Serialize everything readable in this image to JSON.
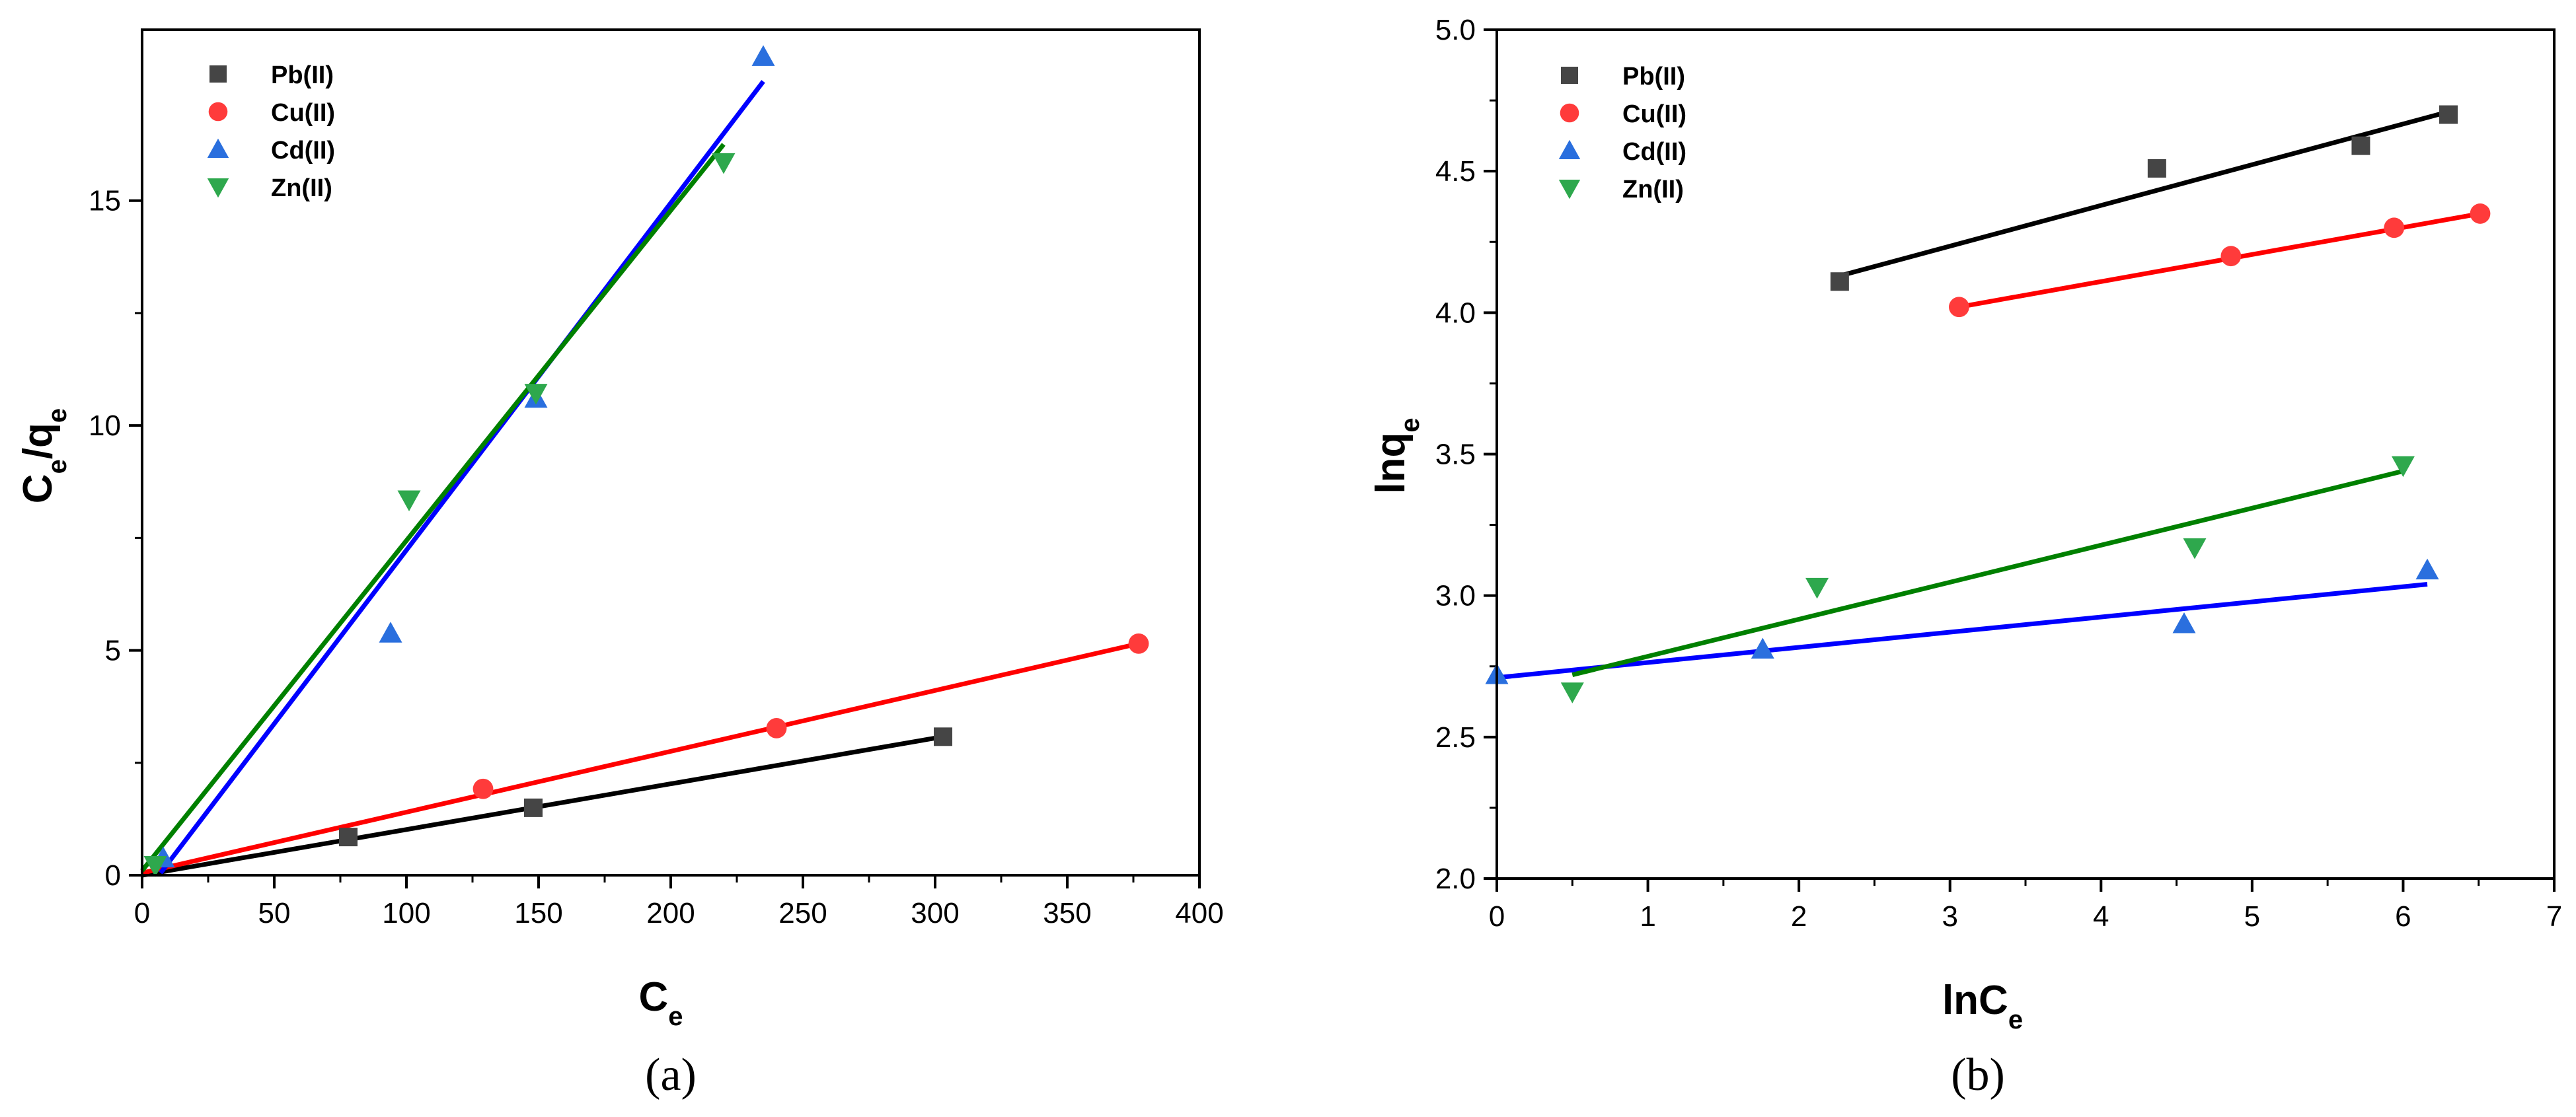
{
  "chart_data": [
    {
      "type": "scatter",
      "panel": "a",
      "caption": "(a)",
      "xlabel": {
        "main": "C",
        "sub": "e"
      },
      "ylabel": {
        "main1": "C",
        "sub1": "e",
        "slash": "/",
        "main2": "q",
        "sub2": "e"
      },
      "xlim": [
        0,
        400
      ],
      "ylim": [
        0,
        18.8
      ],
      "xticks": [
        0,
        50,
        100,
        150,
        200,
        250,
        300,
        350,
        400
      ],
      "yticks": [
        0,
        5,
        10,
        15
      ],
      "legend_position": "top-left",
      "series": [
        {
          "name": "Pb(II)",
          "marker": "square",
          "color": "#454545",
          "line_color": "#000000",
          "x": [
            78,
            148,
            303
          ],
          "y": [
            0.85,
            1.5,
            3.08
          ],
          "fit_x": [
            0,
            303
          ],
          "fit_y": [
            0.0,
            3.08
          ]
        },
        {
          "name": "Cu(II)",
          "marker": "circle",
          "color": "#ff3b3b",
          "line_color": "#ff0000",
          "x": [
            129,
            240,
            377
          ],
          "y": [
            1.92,
            3.27,
            5.15
          ],
          "fit_x": [
            0,
            377
          ],
          "fit_y": [
            0.05,
            5.15
          ]
        },
        {
          "name": "Cd(II)",
          "marker": "triangle-up",
          "color": "#2a6fde",
          "line_color": "#0000ff",
          "x": [
            8,
            94,
            149,
            235
          ],
          "y": [
            0.38,
            5.38,
            10.6,
            18.2
          ],
          "fit_x": [
            7,
            235
          ],
          "fit_y": [
            0.05,
            17.65
          ]
        },
        {
          "name": "Zn(II)",
          "marker": "triangle-down",
          "color": "#2ea84d",
          "line_color": "#008000",
          "x": [
            5,
            101,
            149,
            220
          ],
          "y": [
            0.22,
            8.35,
            10.72,
            15.85
          ],
          "fit_x": [
            0,
            220
          ],
          "fit_y": [
            0.1,
            16.25
          ]
        }
      ]
    },
    {
      "type": "scatter",
      "panel": "b",
      "caption": "(b)",
      "xlabel": {
        "main": "lnC",
        "sub": "e"
      },
      "ylabel": {
        "main1": "lnq",
        "sub1": "e",
        "slash": "",
        "main2": "",
        "sub2": ""
      },
      "xlim": [
        0,
        7
      ],
      "ylim": [
        2.0,
        5.0
      ],
      "xticks": [
        0,
        1,
        2,
        3,
        4,
        5,
        6,
        7
      ],
      "yticks": [
        2.0,
        2.5,
        3.0,
        3.5,
        4.0,
        4.5,
        5.0
      ],
      "ytick_labels": [
        "2.0",
        "2.5",
        "3.0",
        "3.5",
        "4.0",
        "4.5",
        "5.0"
      ],
      "legend_position": "top-left",
      "series": [
        {
          "name": "Pb(II)",
          "marker": "square",
          "color": "#454545",
          "line_color": "#000000",
          "x": [
            2.27,
            4.37,
            5.72,
            6.3
          ],
          "y": [
            4.11,
            4.51,
            4.59,
            4.7
          ],
          "fit_x": [
            2.27,
            6.3
          ],
          "fit_y": [
            4.13,
            4.71
          ]
        },
        {
          "name": "Cu(II)",
          "marker": "circle",
          "color": "#ff3b3b",
          "line_color": "#ff0000",
          "x": [
            3.06,
            4.86,
            5.94,
            6.51
          ],
          "y": [
            4.02,
            4.2,
            4.3,
            4.35
          ],
          "fit_x": [
            3.06,
            6.51
          ],
          "fit_y": [
            4.02,
            4.35
          ]
        },
        {
          "name": "Cd(II)",
          "marker": "triangle-up",
          "color": "#2a6fde",
          "line_color": "#0000ff",
          "x": [
            0.0,
            1.76,
            4.55,
            6.16
          ],
          "y": [
            2.72,
            2.81,
            2.9,
            3.09
          ],
          "fit_x": [
            0.0,
            6.16
          ],
          "fit_y": [
            2.71,
            3.04
          ]
        },
        {
          "name": "Zn(II)",
          "marker": "triangle-down",
          "color": "#2ea84d",
          "line_color": "#008000",
          "x": [
            0.5,
            2.12,
            4.62,
            6.0
          ],
          "y": [
            2.66,
            3.03,
            3.17,
            3.46
          ],
          "fit_x": [
            0.5,
            6.0
          ],
          "fit_y": [
            2.72,
            3.44
          ]
        }
      ]
    }
  ]
}
